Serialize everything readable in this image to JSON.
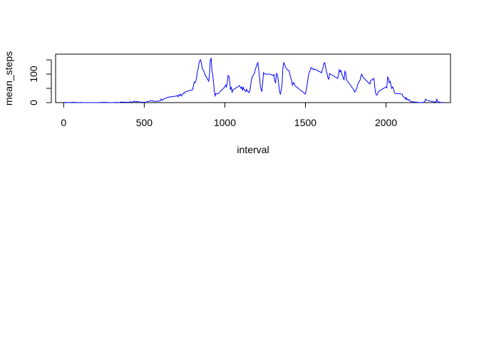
{
  "chart_data": {
    "type": "line",
    "xlabel": "interval",
    "ylabel": "mean_steps",
    "xlim": [
      -50,
      2400
    ],
    "ylim": [
      0,
      170
    ],
    "x_ticks": [
      0,
      500,
      1000,
      1500,
      2000
    ],
    "x_tick_labels": [
      "0",
      "500",
      "1000",
      "1500",
      "2000"
    ],
    "y_ticks": [
      0,
      50,
      100,
      150
    ],
    "y_tick_labels": [
      "0",
      "",
      "100",
      ""
    ],
    "grid": false,
    "line_color": "#0000ff",
    "series": [
      {
        "name": "",
        "points": [
          [
            0,
            1
          ],
          [
            5,
            1
          ],
          [
            10,
            0
          ],
          [
            20,
            1
          ],
          [
            30,
            0
          ],
          [
            55,
            1
          ],
          [
            100,
            0
          ],
          [
            105,
            1
          ],
          [
            115,
            0
          ],
          [
            200,
            0
          ],
          [
            250,
            1
          ],
          [
            300,
            0
          ],
          [
            330,
            1
          ],
          [
            345,
            0
          ],
          [
            355,
            2
          ],
          [
            405,
            1
          ],
          [
            410,
            3
          ],
          [
            420,
            1
          ],
          [
            440,
            5
          ],
          [
            450,
            2
          ],
          [
            455,
            4
          ],
          [
            470,
            2
          ],
          [
            510,
            1
          ],
          [
            515,
            3
          ],
          [
            530,
            5
          ],
          [
            550,
            7
          ],
          [
            560,
            4
          ],
          [
            600,
            6
          ],
          [
            605,
            13
          ],
          [
            610,
            10
          ],
          [
            615,
            8
          ],
          [
            620,
            12
          ],
          [
            640,
            17
          ],
          [
            650,
            19
          ],
          [
            700,
            23
          ],
          [
            705,
            25
          ],
          [
            710,
            20
          ],
          [
            715,
            27
          ],
          [
            720,
            25
          ],
          [
            725,
            30
          ],
          [
            730,
            23
          ],
          [
            745,
            34
          ],
          [
            750,
            33
          ],
          [
            755,
            38
          ],
          [
            800,
            45
          ],
          [
            810,
            72
          ],
          [
            815,
            70
          ],
          [
            820,
            75
          ],
          [
            825,
            90
          ],
          [
            830,
            110
          ],
          [
            835,
            120
          ],
          [
            840,
            140
          ],
          [
            845,
            148
          ],
          [
            850,
            150
          ],
          [
            855,
            135
          ],
          [
            860,
            120
          ],
          [
            870,
            110
          ],
          [
            875,
            100
          ],
          [
            900,
            75
          ],
          [
            905,
            102
          ],
          [
            910,
            150
          ],
          [
            915,
            155
          ],
          [
            920,
            112
          ],
          [
            925,
            98
          ],
          [
            930,
            70
          ],
          [
            935,
            40
          ],
          [
            940,
            24
          ],
          [
            945,
            32
          ],
          [
            950,
            30
          ],
          [
            960,
            32
          ],
          [
            970,
            38
          ],
          [
            1000,
            55
          ],
          [
            1005,
            62
          ],
          [
            1010,
            55
          ],
          [
            1015,
            72
          ],
          [
            1020,
            95
          ],
          [
            1025,
            93
          ],
          [
            1030,
            75
          ],
          [
            1035,
            45
          ],
          [
            1040,
            55
          ],
          [
            1045,
            35
          ],
          [
            1050,
            45
          ],
          [
            1060,
            48
          ],
          [
            1070,
            52
          ],
          [
            1080,
            55
          ],
          [
            1090,
            60
          ],
          [
            1100,
            50
          ],
          [
            1105,
            55
          ],
          [
            1110,
            42
          ],
          [
            1115,
            55
          ],
          [
            1120,
            45
          ],
          [
            1125,
            42
          ],
          [
            1130,
            38
          ],
          [
            1135,
            47
          ],
          [
            1140,
            40
          ],
          [
            1145,
            38
          ],
          [
            1150,
            35
          ],
          [
            1155,
            40
          ],
          [
            1160,
            60
          ],
          [
            1165,
            80
          ],
          [
            1170,
            90
          ],
          [
            1175,
            95
          ],
          [
            1180,
            100
          ],
          [
            1185,
            105
          ],
          [
            1190,
            120
          ],
          [
            1195,
            125
          ],
          [
            1200,
            135
          ],
          [
            1205,
            140
          ],
          [
            1210,
            115
          ],
          [
            1215,
            90
          ],
          [
            1220,
            60
          ],
          [
            1225,
            45
          ],
          [
            1230,
            40
          ],
          [
            1240,
            105
          ],
          [
            1245,
            102
          ],
          [
            1250,
            100
          ],
          [
            1280,
            100
          ],
          [
            1300,
            95
          ],
          [
            1305,
            98
          ],
          [
            1310,
            75
          ],
          [
            1315,
            70
          ],
          [
            1320,
            102
          ],
          [
            1325,
            100
          ],
          [
            1330,
            85
          ],
          [
            1335,
            60
          ],
          [
            1340,
            35
          ],
          [
            1345,
            30
          ],
          [
            1350,
            45
          ],
          [
            1355,
            65
          ],
          [
            1360,
            120
          ],
          [
            1365,
            140
          ],
          [
            1370,
            135
          ],
          [
            1380,
            120
          ],
          [
            1400,
            110
          ],
          [
            1405,
            95
          ],
          [
            1410,
            85
          ],
          [
            1415,
            75
          ],
          [
            1420,
            60
          ],
          [
            1425,
            70
          ],
          [
            1430,
            68
          ],
          [
            1435,
            60
          ],
          [
            1440,
            57
          ],
          [
            1445,
            55
          ],
          [
            1450,
            52
          ],
          [
            1455,
            50
          ],
          [
            1500,
            30
          ],
          [
            1505,
            45
          ],
          [
            1510,
            60
          ],
          [
            1515,
            80
          ],
          [
            1520,
            100
          ],
          [
            1525,
            108
          ],
          [
            1530,
            113
          ],
          [
            1535,
            123
          ],
          [
            1540,
            120
          ],
          [
            1545,
            120
          ],
          [
            1550,
            115
          ],
          [
            1555,
            118
          ],
          [
            1600,
            105
          ],
          [
            1605,
            115
          ],
          [
            1610,
            125
          ],
          [
            1615,
            138
          ],
          [
            1620,
            140
          ],
          [
            1625,
            125
          ],
          [
            1630,
            110
          ],
          [
            1635,
            100
          ],
          [
            1640,
            85
          ],
          [
            1645,
            82
          ],
          [
            1650,
            102
          ],
          [
            1655,
            100
          ],
          [
            1700,
            85
          ],
          [
            1705,
            95
          ],
          [
            1710,
            115
          ],
          [
            1715,
            108
          ],
          [
            1720,
            113
          ],
          [
            1725,
            100
          ],
          [
            1730,
            95
          ],
          [
            1735,
            85
          ],
          [
            1740,
            80
          ],
          [
            1745,
            110
          ],
          [
            1750,
            105
          ],
          [
            1755,
            80
          ],
          [
            1800,
            45
          ],
          [
            1805,
            37
          ],
          [
            1810,
            40
          ],
          [
            1815,
            47
          ],
          [
            1820,
            52
          ],
          [
            1825,
            65
          ],
          [
            1830,
            70
          ],
          [
            1835,
            75
          ],
          [
            1840,
            80
          ],
          [
            1845,
            95
          ],
          [
            1850,
            100
          ],
          [
            1855,
            90
          ],
          [
            1900,
            65
          ],
          [
            1905,
            78
          ],
          [
            1910,
            80
          ],
          [
            1915,
            80
          ],
          [
            1920,
            83
          ],
          [
            1925,
            85
          ],
          [
            1930,
            55
          ],
          [
            1935,
            35
          ],
          [
            1940,
            27
          ],
          [
            1945,
            27
          ],
          [
            1950,
            35
          ],
          [
            1955,
            40
          ],
          [
            2000,
            55
          ],
          [
            2005,
            52
          ],
          [
            2010,
            90
          ],
          [
            2015,
            85
          ],
          [
            2020,
            70
          ],
          [
            2025,
            75
          ],
          [
            2030,
            65
          ],
          [
            2035,
            50
          ],
          [
            2040,
            55
          ],
          [
            2045,
            50
          ],
          [
            2050,
            40
          ],
          [
            2055,
            32
          ],
          [
            2100,
            30
          ],
          [
            2105,
            22
          ],
          [
            2110,
            20
          ],
          [
            2115,
            18
          ],
          [
            2120,
            12
          ],
          [
            2125,
            18
          ],
          [
            2130,
            10
          ],
          [
            2135,
            12
          ],
          [
            2140,
            8
          ],
          [
            2145,
            10
          ],
          [
            2150,
            5
          ],
          [
            2155,
            3
          ],
          [
            2200,
            1
          ],
          [
            2205,
            0
          ],
          [
            2210,
            0
          ],
          [
            2215,
            0
          ],
          [
            2220,
            1
          ],
          [
            2225,
            0
          ],
          [
            2230,
            0
          ],
          [
            2235,
            2
          ],
          [
            2240,
            3
          ],
          [
            2245,
            12
          ],
          [
            2250,
            10
          ],
          [
            2255,
            8
          ],
          [
            2300,
            2
          ],
          [
            2305,
            3
          ],
          [
            2310,
            1
          ],
          [
            2315,
            12
          ],
          [
            2320,
            5
          ],
          [
            2325,
            3
          ],
          [
            2330,
            2
          ],
          [
            2335,
            1
          ],
          [
            2340,
            1
          ],
          [
            2345,
            0
          ],
          [
            2350,
            0
          ],
          [
            2355,
            1
          ]
        ]
      }
    ]
  }
}
